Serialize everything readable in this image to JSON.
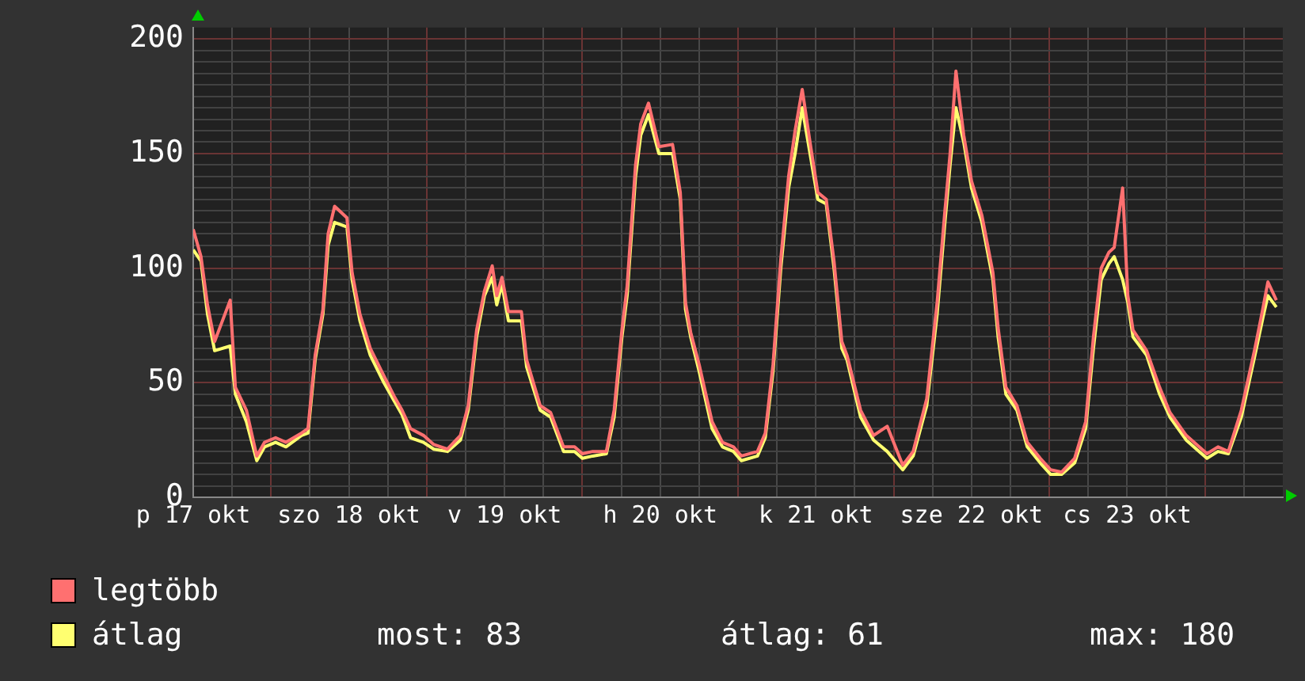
{
  "chart_data": {
    "type": "line",
    "legend": "bottom",
    "grid": true,
    "marker": "none",
    "line_style": "solid",
    "x": [
      "--10-17T12:00",
      "--10-17T13:12",
      "--10-17T14:12",
      "--10-17T15:18",
      "--10-17T17:42",
      "--10-17T18:30",
      "--10-17T20:12",
      "--10-17T21:48",
      "--10-17T23:00",
      "--10-18T00:42",
      "--10-18T02:18",
      "--10-18T04:42",
      "--10-18T05:42",
      "--10-18T06:48",
      "--10-18T08:00",
      "--10-18T08:48",
      "--10-18T09:48",
      "--10-18T11:42",
      "--10-18T12:30",
      "--10-18T13:42",
      "--10-18T15:18",
      "--10-18T17:24",
      "--10-18T19:00",
      "--10-18T20:12",
      "--10-18T21:30",
      "--10-18T23:30",
      "--10-19T01:06",
      "--10-19T03:12",
      "--10-19T05:12",
      "--10-19T06:24",
      "--10-19T07:42",
      "--10-19T08:54",
      "--10-19T10:06",
      "--10-19T10:48",
      "--10-19T11:36",
      "--10-19T12:36",
      "--10-19T14:36",
      "--10-19T15:24",
      "--10-19T17:30",
      "--10-19T19:06",
      "--10-19T21:06",
      "--10-19T22:48",
      "--10-20T00:00",
      "--10-20T01:36",
      "--10-20T03:42",
      "--10-20T04:54",
      "--10-20T06:06",
      "--10-20T06:54",
      "--10-20T08:12",
      "--10-20T09:00",
      "--10-20T10:12",
      "--10-20T11:48",
      "--10-20T13:54",
      "--10-20T15:06",
      "--10-20T15:54",
      "--10-20T16:42",
      "--10-20T18:00",
      "--10-20T19:12",
      "--10-20T20:00",
      "--10-20T21:36",
      "--10-20T23:18",
      "--10-21T00:30",
      "--10-21T03:00",
      "--10-21T04:12",
      "--10-21T05:24",
      "--10-21T06:36",
      "--10-21T07:48",
      "--10-21T08:48",
      "--10-21T09:54",
      "--10-21T11:06",
      "--10-21T12:18",
      "--10-21T13:36",
      "--10-21T14:48",
      "--10-21T16:00",
      "--10-21T16:48",
      "--10-21T18:54",
      "--10-21T20:54",
      "--10-21T23:00",
      "--10-22T01:24",
      "--10-22T03:00",
      "--10-22T05:06",
      "--10-22T06:42",
      "--10-22T07:54",
      "--10-22T08:42",
      "--10-22T09:36",
      "--10-22T10:48",
      "--10-22T12:00",
      "--10-22T13:36",
      "--10-22T15:18",
      "--10-22T16:06",
      "--10-22T17:18",
      "--10-22T19:00",
      "--10-22T20:36",
      "--10-22T22:36",
      "--10-23T00:12",
      "--10-23T01:54",
      "--10-23T03:54",
      "--10-23T05:36",
      "--10-23T06:48",
      "--10-23T08:00",
      "--10-23T09:12",
      "--10-23T10:00",
      "--10-23T11:18",
      "--10-23T12:06",
      "--10-23T12:54",
      "--10-23T15:00",
      "--10-23T17:00",
      "--10-23T18:36",
      "--10-23T21:06",
      "--10-23T23:06",
      "--10-24T00:18",
      "--10-24T02:00",
      "--10-24T03:36",
      "--10-24T05:36",
      "--10-24T07:42",
      "--10-24T08:54",
      "--10-24T09:42",
      "--10-24T11:00"
    ],
    "series": [
      {
        "name": "legtöbb",
        "color": "#ff7070",
        "values": [
          117,
          105,
          84,
          68,
          86,
          48,
          38,
          18,
          24,
          26,
          24,
          28,
          30,
          62,
          82,
          115,
          127,
          122,
          98,
          80,
          65,
          53,
          44,
          38,
          30,
          27,
          23,
          21,
          27,
          40,
          73,
          90,
          101,
          88,
          96,
          81,
          81,
          60,
          40,
          37,
          22,
          22,
          19,
          20,
          20,
          38,
          73,
          92,
          145,
          163,
          172,
          153,
          154,
          133,
          85,
          72,
          58,
          43,
          33,
          24,
          22,
          18,
          20,
          28,
          58,
          104,
          140,
          160,
          178,
          155,
          133,
          130,
          103,
          68,
          62,
          38,
          27,
          31,
          14,
          20,
          43,
          85,
          125,
          150,
          186,
          158,
          138,
          123,
          98,
          74,
          48,
          40,
          24,
          17,
          12,
          11,
          17,
          33,
          70,
          100,
          107,
          109,
          135,
          88,
          73,
          64,
          48,
          37,
          27,
          22,
          19,
          22,
          20,
          38,
          65,
          82,
          94,
          86
        ]
      },
      {
        "name": "átlag",
        "color": "#ffff70",
        "values": [
          108,
          103,
          80,
          64,
          66,
          45,
          33,
          16,
          22,
          24,
          22,
          27,
          28,
          60,
          80,
          110,
          120,
          118,
          95,
          77,
          62,
          50,
          42,
          36,
          26,
          24,
          21,
          20,
          25,
          38,
          70,
          88,
          96,
          84,
          93,
          77,
          77,
          57,
          38,
          35,
          20,
          20,
          17,
          18,
          19,
          35,
          70,
          88,
          140,
          158,
          167,
          150,
          150,
          130,
          82,
          70,
          55,
          40,
          30,
          22,
          20,
          16,
          18,
          26,
          55,
          100,
          135,
          150,
          170,
          150,
          130,
          128,
          100,
          65,
          60,
          35,
          25,
          20,
          12,
          18,
          40,
          80,
          120,
          145,
          170,
          155,
          135,
          120,
          95,
          70,
          45,
          38,
          22,
          15,
          10,
          10,
          15,
          30,
          65,
          95,
          102,
          105,
          95,
          85,
          70,
          62,
          45,
          35,
          25,
          20,
          17,
          20,
          19,
          35,
          62,
          78,
          88,
          83
        ]
      }
    ],
    "xlim": [
      "--10-17T12:00",
      "--10-24T12:00"
    ],
    "xticks": [
      {
        "value": "--10-17T12:00",
        "label": "p 17 okt"
      },
      {
        "value": "--10-17T18:00",
        "label": null
      },
      {
        "value": "--10-18T00:00",
        "label": null
      },
      {
        "value": "--10-18T06:00",
        "label": null
      },
      {
        "value": "--10-18T12:00",
        "label": "szo 18 okt"
      },
      {
        "value": "--10-18T18:00",
        "label": null
      },
      {
        "value": "--10-19T00:00",
        "label": null
      },
      {
        "value": "--10-19T06:00",
        "label": null
      },
      {
        "value": "--10-19T12:00",
        "label": "v 19 okt"
      },
      {
        "value": "--10-19T18:00",
        "label": null
      },
      {
        "value": "--10-20T00:00",
        "label": null
      },
      {
        "value": "--10-20T06:00",
        "label": null
      },
      {
        "value": "--10-20T12:00",
        "label": "h 20 okt"
      },
      {
        "value": "--10-20T18:00",
        "label": null
      },
      {
        "value": "--10-21T00:00",
        "label": null
      },
      {
        "value": "--10-21T06:00",
        "label": null
      },
      {
        "value": "--10-21T12:00",
        "label": "k 21 okt"
      },
      {
        "value": "--10-21T18:00",
        "label": null
      },
      {
        "value": "--10-22T00:00",
        "label": null
      },
      {
        "value": "--10-22T06:00",
        "label": null
      },
      {
        "value": "--10-22T12:00",
        "label": "sze 22 okt"
      },
      {
        "value": "--10-22T18:00",
        "label": null
      },
      {
        "value": "--10-23T00:00",
        "label": null
      },
      {
        "value": "--10-23T06:00",
        "label": null
      },
      {
        "value": "--10-23T12:00",
        "label": "cs 23 okt"
      },
      {
        "value": "--10-23T18:00",
        "label": null
      },
      {
        "value": "--10-24T00:00",
        "label": null
      },
      {
        "value": "--10-24T06:00",
        "label": null
      }
    ],
    "ylim": [
      0,
      205
    ],
    "yticks": [
      0,
      {
        "value": 5,
        "label": null
      },
      {
        "value": 10,
        "label": null
      },
      {
        "value": 15,
        "label": null
      },
      {
        "value": 20,
        "label": null
      },
      {
        "value": 25,
        "label": null
      },
      {
        "value": 30,
        "label": null
      },
      {
        "value": 35,
        "label": null
      },
      {
        "value": 40,
        "label": null
      },
      {
        "value": 45,
        "label": null
      },
      50,
      {
        "value": 55,
        "label": null
      },
      {
        "value": 60,
        "label": null
      },
      {
        "value": 65,
        "label": null
      },
      {
        "value": 70,
        "label": null
      },
      {
        "value": 75,
        "label": null
      },
      {
        "value": 80,
        "label": null
      },
      {
        "value": 85,
        "label": null
      },
      {
        "value": 90,
        "label": null
      },
      {
        "value": 95,
        "label": null
      },
      100,
      {
        "value": 105,
        "label": null
      },
      {
        "value": 110,
        "label": null
      },
      {
        "value": 115,
        "label": null
      },
      {
        "value": 120,
        "label": null
      },
      {
        "value": 125,
        "label": null
      },
      {
        "value": 130,
        "label": null
      },
      {
        "value": 135,
        "label": null
      },
      {
        "value": 140,
        "label": null
      },
      {
        "value": 145,
        "label": null
      },
      150,
      {
        "value": 155,
        "label": null
      },
      {
        "value": 160,
        "label": null
      },
      {
        "value": 165,
        "label": null
      },
      {
        "value": 170,
        "label": null
      },
      {
        "value": 175,
        "label": null
      },
      {
        "value": 180,
        "label": null
      },
      {
        "value": 185,
        "label": null
      },
      {
        "value": 190,
        "label": null
      },
      {
        "value": 195,
        "label": null
      },
      200
    ],
    "annotations": [
      "most: 83",
      "átlag: 61",
      "max: 180"
    ]
  }
}
